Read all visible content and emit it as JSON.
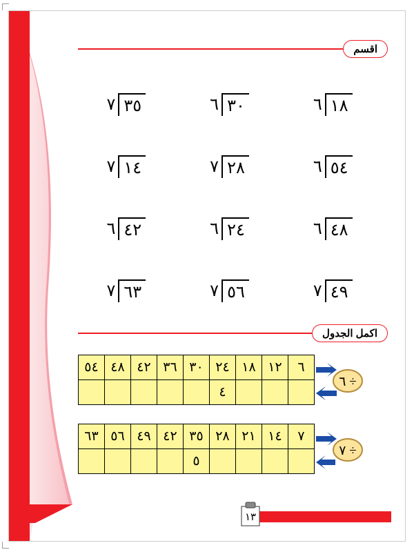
{
  "colors": {
    "accent": "#ed1c24",
    "curtain_light": "#fce6e8",
    "curtain_mid": "#f8bfc5",
    "curtain_dark": "#f4a0aa",
    "table_bg": "#fef79c",
    "badge_fill": "#fde49c",
    "badge_stroke": "#b38b3a",
    "arrow": "#1b4da6"
  },
  "section1": {
    "label": "اقسم"
  },
  "section2": {
    "label": "اكمل الجدول"
  },
  "divisions": [
    {
      "divisor": "٦",
      "dividend": "١٨"
    },
    {
      "divisor": "٦",
      "dividend": "٣٠"
    },
    {
      "divisor": "٧",
      "dividend": "٣٥"
    },
    {
      "divisor": "٦",
      "dividend": "٥٤"
    },
    {
      "divisor": "٧",
      "dividend": "٢٨"
    },
    {
      "divisor": "٧",
      "dividend": "١٤"
    },
    {
      "divisor": "٦",
      "dividend": "٤٨"
    },
    {
      "divisor": "٦",
      "dividend": "٢٤"
    },
    {
      "divisor": "٦",
      "dividend": "٤٢"
    },
    {
      "divisor": "٧",
      "dividend": "٤٩"
    },
    {
      "divisor": "٧",
      "dividend": "٥٦"
    },
    {
      "divisor": "٧",
      "dividend": "٦٣"
    }
  ],
  "table1": {
    "top": [
      "٥٤",
      "٤٨",
      "٤٢",
      "٣٦",
      "٣٠",
      "٢٤",
      "١٨",
      "١٢",
      "٦"
    ],
    "bottom": [
      "",
      "",
      "",
      "",
      "",
      "٤",
      "",
      "",
      ""
    ],
    "badge": "٦ ÷"
  },
  "table2": {
    "top": [
      "٦٣",
      "٥٦",
      "٤٩",
      "٤٢",
      "٣٥",
      "٢٨",
      "٢١",
      "١٤",
      "٧"
    ],
    "bottom": [
      "",
      "",
      "",
      "",
      "٥",
      "",
      "",
      "",
      ""
    ],
    "badge": "٧ ÷"
  },
  "page_number": "١٣"
}
